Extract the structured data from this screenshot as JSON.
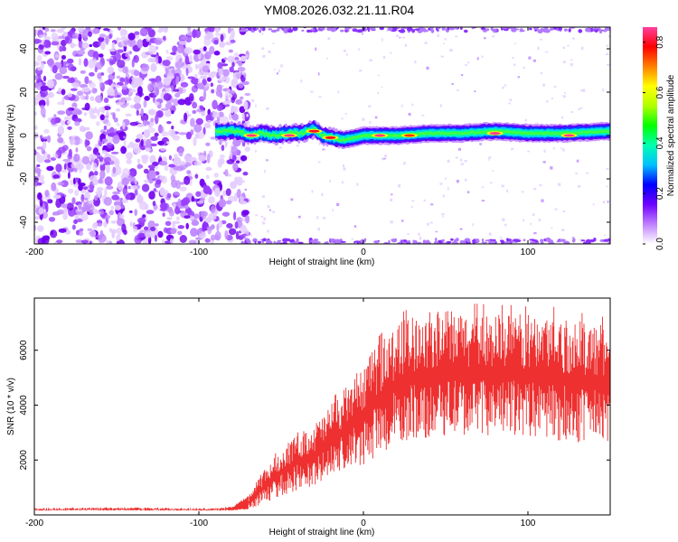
{
  "title": "YM08.2026.032.21.11.R04",
  "chart_data": [
    {
      "type": "heatmap",
      "xlabel": "Height of straight line (km)",
      "ylabel": "Frequency (Hz)",
      "xlim": [
        -200,
        150
      ],
      "ylim": [
        -50,
        50
      ],
      "x_ticks": [
        -200,
        -100,
        0,
        100
      ],
      "y_ticks": [
        -40,
        -20,
        0,
        20,
        40
      ],
      "colorbar": {
        "label": "Normalized spectral amplitude",
        "range": [
          0,
          0.86
        ],
        "ticks": [
          0.0,
          0.2,
          0.4,
          0.6,
          0.8
        ],
        "colors": [
          "#ffffff",
          "#c080ff",
          "#7000ff",
          "#0000ff",
          "#00c0ff",
          "#00ffb0",
          "#00ff00",
          "#b0ff00",
          "#ffff00",
          "#ff8000",
          "#ff0000",
          "#ff40a0"
        ]
      },
      "regions": [
        {
          "x": [
            -200,
            -75
          ],
          "y": [
            -50,
            50
          ],
          "description_level": 0.1
        },
        {
          "x": [
            -75,
            150
          ],
          "y": [
            -1,
            1
          ],
          "level": 0.55
        },
        {
          "x": [
            -75,
            150
          ],
          "y": [
            -50,
            -48
          ],
          "level": 0.08
        },
        {
          "x": [
            -75,
            150
          ],
          "y": [
            48,
            50
          ],
          "level": 0.08
        }
      ],
      "ridge_frequency": [
        [
          -90,
          2
        ],
        [
          -75,
          2
        ],
        [
          -70,
          0
        ],
        [
          -62,
          1
        ],
        [
          -55,
          0
        ],
        [
          -45,
          1
        ],
        [
          -38,
          1
        ],
        [
          -30,
          3
        ],
        [
          -25,
          0
        ],
        [
          -18,
          -1
        ],
        [
          -12,
          -2
        ],
        [
          -5,
          -1
        ],
        [
          0,
          0
        ],
        [
          20,
          0
        ],
        [
          40,
          1
        ],
        [
          60,
          1
        ],
        [
          80,
          2
        ],
        [
          100,
          1
        ],
        [
          120,
          1
        ],
        [
          150,
          2
        ]
      ],
      "ridge_peaks": [
        {
          "x": -68,
          "y": 0,
          "level": 0.85
        },
        {
          "x": -45,
          "y": 0,
          "level": 0.85
        },
        {
          "x": -30,
          "y": 2,
          "level": 0.8
        },
        {
          "x": -20,
          "y": -1,
          "level": 0.8
        },
        {
          "x": 10,
          "y": 0,
          "level": 0.85
        },
        {
          "x": 28,
          "y": 0,
          "level": 0.75
        },
        {
          "x": 80,
          "y": 1,
          "level": 0.85
        },
        {
          "x": 125,
          "y": 0,
          "level": 0.85
        }
      ]
    },
    {
      "type": "area",
      "xlabel": "Height of straight line (km)",
      "ylabel": "SNR (10 * v/v)",
      "xlim": [
        -200,
        150
      ],
      "ylim": [
        0,
        7900
      ],
      "x_ticks": [
        -200,
        -100,
        0,
        100
      ],
      "y_ticks": [
        2000,
        4000,
        6000
      ],
      "series": [
        {
          "color": "#ee3030",
          "x": [
            -200,
            -150,
            -100,
            -80,
            -70,
            -60,
            -50,
            -40,
            -30,
            -20,
            -10,
            0,
            10,
            20,
            30,
            40,
            50,
            60,
            70,
            80,
            90,
            100,
            110,
            120,
            130,
            140,
            150
          ],
          "upper": [
            250,
            280,
            250,
            300,
            700,
            1700,
            2400,
            3000,
            3300,
            4000,
            4700,
            5500,
            6300,
            7000,
            7300,
            7400,
            7450,
            7400,
            7400,
            7350,
            7350,
            7300,
            7400,
            7200,
            7100,
            7000,
            6900
          ],
          "lower": [
            150,
            160,
            150,
            150,
            200,
            400,
            700,
            900,
            1000,
            1300,
            1600,
            1800,
            2200,
            2500,
            2700,
            2800,
            2900,
            2900,
            2900,
            2900,
            2900,
            2850,
            2800,
            2700,
            2650,
            2600,
            2550
          ]
        }
      ]
    }
  ]
}
